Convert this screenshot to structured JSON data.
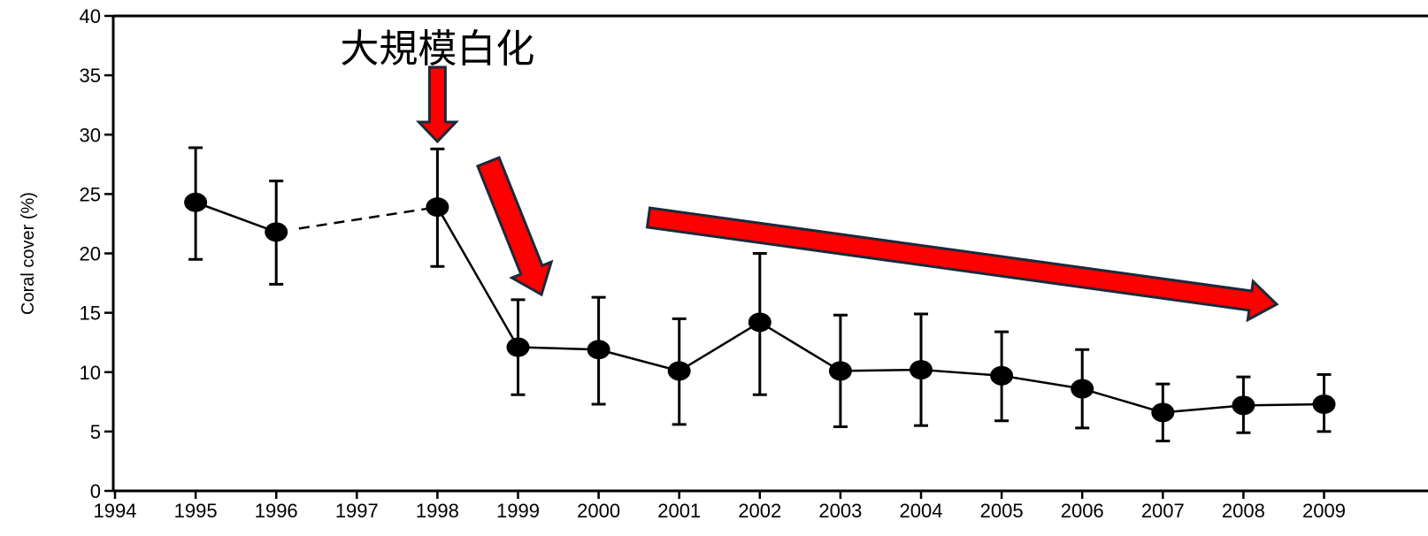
{
  "chart_data": {
    "type": "line",
    "title": "",
    "xlabel": "",
    "ylabel": "Coral cover (%)",
    "xlim": [
      1994,
      2009
    ],
    "ylim": [
      0,
      40
    ],
    "x_ticks": [
      "1994",
      "1995",
      "1996",
      "1997",
      "1998",
      "1999",
      "2000",
      "2001",
      "2002",
      "2003",
      "2004",
      "2005",
      "2006",
      "2007",
      "2008",
      "2009"
    ],
    "y_ticks": [
      "0",
      "5",
      "10",
      "15",
      "20",
      "25",
      "30",
      "35",
      "40"
    ],
    "series": [
      {
        "points": [
          {
            "x": 1995,
            "y": 24.3,
            "err_low": 19.5,
            "err_high": 28.9
          },
          {
            "x": 1996,
            "y": 21.8,
            "err_low": 17.4,
            "err_high": 26.1
          },
          {
            "x": 1998,
            "y": 23.9,
            "err_low": 18.9,
            "err_high": 28.8
          },
          {
            "x": 1999,
            "y": 12.1,
            "err_low": 8.1,
            "err_high": 16.1
          },
          {
            "x": 2000,
            "y": 11.9,
            "err_low": 7.3,
            "err_high": 16.3
          },
          {
            "x": 2001,
            "y": 10.1,
            "err_low": 5.6,
            "err_high": 14.5
          },
          {
            "x": 2002,
            "y": 14.2,
            "err_low": 8.1,
            "err_high": 20.0
          },
          {
            "x": 2003,
            "y": 10.1,
            "err_low": 5.4,
            "err_high": 14.8
          },
          {
            "x": 2004,
            "y": 10.2,
            "err_low": 5.5,
            "err_high": 14.9
          },
          {
            "x": 2005,
            "y": 9.7,
            "err_low": 5.9,
            "err_high": 13.4
          },
          {
            "x": 2006,
            "y": 8.6,
            "err_low": 5.3,
            "err_high": 11.9
          },
          {
            "x": 2007,
            "y": 6.6,
            "err_low": 4.2,
            "err_high": 9.0
          },
          {
            "x": 2008,
            "y": 7.2,
            "err_low": 4.9,
            "err_high": 9.6
          },
          {
            "x": 2009,
            "y": 7.3,
            "err_low": 5.0,
            "err_high": 9.8
          }
        ],
        "dashed_gap": [
          1996,
          1998
        ]
      }
    ],
    "annotations": [
      {
        "text": "大規模白化",
        "year": 1998
      }
    ],
    "colors": {
      "series": "#000000",
      "arrow_fill": "#ff0000",
      "arrow_stroke": "#1a2a3a"
    }
  }
}
